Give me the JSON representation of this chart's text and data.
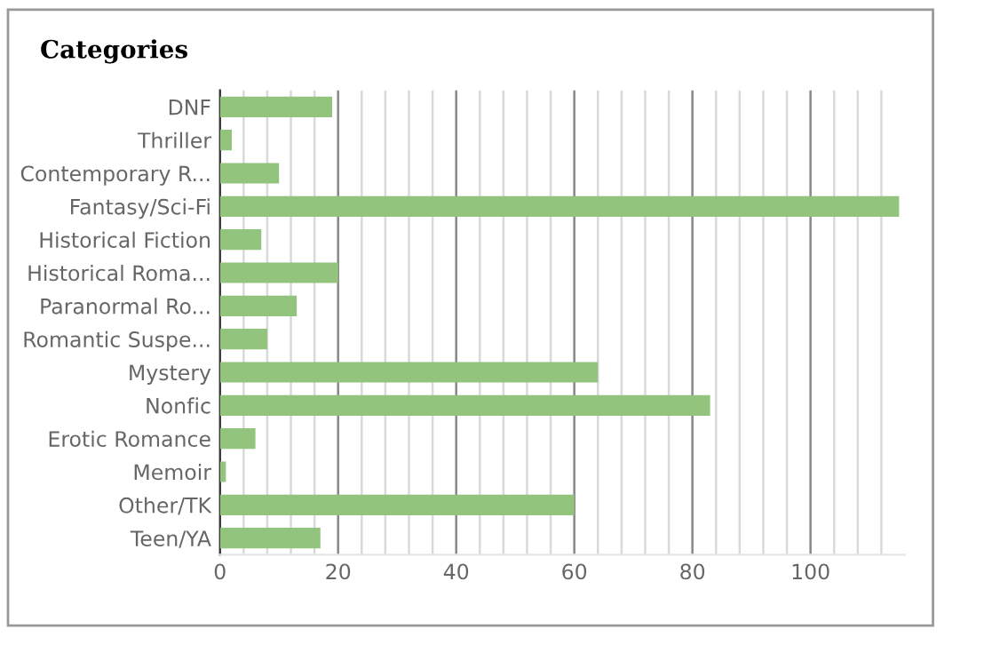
{
  "chart_data": {
    "type": "bar",
    "orientation": "horizontal",
    "title": "Categories",
    "categories": [
      "DNF",
      "Thriller",
      "Contemporary R...",
      "Fantasy/Sci-Fi",
      "Historical Fiction",
      "Historical Roma...",
      "Paranormal Ro...",
      "Romantic Suspe...",
      "Mystery",
      "Nonfic",
      "Erotic Romance",
      "Memoir",
      "Other/TK",
      "Teen/YA"
    ],
    "values": [
      19,
      2,
      10,
      115,
      7,
      20,
      13,
      8,
      64,
      83,
      6,
      1,
      60,
      17
    ],
    "color": "#93c47d",
    "xlim": [
      0,
      116
    ],
    "xticks": [
      0,
      {
        "value": 4,
        "label": null
      },
      {
        "value": 8,
        "label": null
      },
      {
        "value": 12,
        "label": null
      },
      {
        "value": 16,
        "label": null
      },
      20,
      {
        "value": 24,
        "label": null
      },
      {
        "value": 28,
        "label": null
      },
      {
        "value": 32,
        "label": null
      },
      {
        "value": 36,
        "label": null
      },
      40,
      {
        "value": 44,
        "label": null
      },
      {
        "value": 48,
        "label": null
      },
      {
        "value": 52,
        "label": null
      },
      {
        "value": 56,
        "label": null
      },
      60,
      {
        "value": 64,
        "label": null
      },
      {
        "value": 68,
        "label": null
      },
      {
        "value": 72,
        "label": null
      },
      {
        "value": 76,
        "label": null
      },
      80,
      {
        "value": 84,
        "label": null
      },
      {
        "value": 88,
        "label": null
      },
      {
        "value": 92,
        "label": null
      },
      {
        "value": 96,
        "label": null
      },
      100,
      {
        "value": 104,
        "label": null
      },
      {
        "value": 108,
        "label": null
      },
      {
        "value": 112,
        "label": null
      }
    ],
    "grid": "x",
    "legend": false
  }
}
